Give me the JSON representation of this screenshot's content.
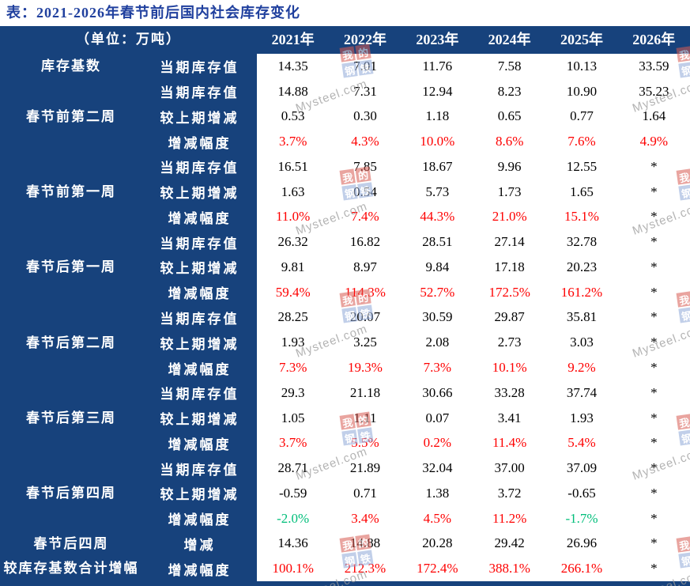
{
  "chart_data": {
    "type": "table",
    "title": "表：2021-2026年春节前后国内社会库存变化",
    "unit": "（单位：万吨）",
    "columns": [
      "2021年",
      "2022年",
      "2023年",
      "2024年",
      "2025年",
      "2026年"
    ],
    "groups": [
      {
        "label": "库存基数",
        "rows": [
          {
            "label": "当期库存值",
            "type": "value",
            "cells": [
              "14.35",
              "7.01",
              "11.76",
              "7.58",
              "10.13",
              "33.59"
            ]
          }
        ]
      },
      {
        "label": "春节前第二周",
        "rows": [
          {
            "label": "当期库存值",
            "type": "value",
            "cells": [
              "14.88",
              "7.31",
              "12.94",
              "8.23",
              "10.90",
              "35.23"
            ]
          },
          {
            "label": "较上期增减",
            "type": "value",
            "cells": [
              "0.53",
              "0.30",
              "1.18",
              "0.65",
              "0.77",
              "1.64"
            ]
          },
          {
            "label": "增减幅度",
            "type": "pct",
            "cells": [
              "3.7%",
              "4.3%",
              "10.0%",
              "8.6%",
              "7.6%",
              "4.9%"
            ]
          }
        ]
      },
      {
        "label": "春节前第一周",
        "rows": [
          {
            "label": "当期库存值",
            "type": "value",
            "cells": [
              "16.51",
              "7.85",
              "18.67",
              "9.96",
              "12.55",
              "*"
            ]
          },
          {
            "label": "较上期增减",
            "type": "value",
            "cells": [
              "1.63",
              "0.54",
              "5.73",
              "1.73",
              "1.65",
              "*"
            ]
          },
          {
            "label": "增减幅度",
            "type": "pct",
            "cells": [
              "11.0%",
              "7.4%",
              "44.3%",
              "21.0%",
              "15.1%",
              "*"
            ]
          }
        ]
      },
      {
        "label": "春节后第一周",
        "rows": [
          {
            "label": "当期库存值",
            "type": "value",
            "cells": [
              "26.32",
              "16.82",
              "28.51",
              "27.14",
              "32.78",
              "*"
            ]
          },
          {
            "label": "较上期增减",
            "type": "value",
            "cells": [
              "9.81",
              "8.97",
              "9.84",
              "17.18",
              "20.23",
              "*"
            ]
          },
          {
            "label": "增减幅度",
            "type": "pct",
            "cells": [
              "59.4%",
              "114.3%",
              "52.7%",
              "172.5%",
              "161.2%",
              "*"
            ]
          }
        ]
      },
      {
        "label": "春节后第二周",
        "rows": [
          {
            "label": "当期库存值",
            "type": "value",
            "cells": [
              "28.25",
              "20.07",
              "30.59",
              "29.87",
              "35.81",
              "*"
            ]
          },
          {
            "label": "较上期增减",
            "type": "value",
            "cells": [
              "1.93",
              "3.25",
              "2.08",
              "2.73",
              "3.03",
              "*"
            ]
          },
          {
            "label": "增减幅度",
            "type": "pct",
            "cells": [
              "7.3%",
              "19.3%",
              "7.3%",
              "10.1%",
              "9.2%",
              "*"
            ]
          }
        ]
      },
      {
        "label": "春节后第三周",
        "rows": [
          {
            "label": "当期库存值",
            "type": "value",
            "cells": [
              "29.3",
              "21.18",
              "30.66",
              "33.28",
              "37.74",
              "*"
            ]
          },
          {
            "label": "较上期增减",
            "type": "value",
            "cells": [
              "1.05",
              "1.11",
              "0.07",
              "3.41",
              "1.93",
              "*"
            ]
          },
          {
            "label": "增减幅度",
            "type": "pct",
            "cells": [
              "3.7%",
              "5.5%",
              "0.2%",
              "11.4%",
              "5.4%",
              "*"
            ]
          }
        ]
      },
      {
        "label": "春节后第四周",
        "rows": [
          {
            "label": "当期库存值",
            "type": "value",
            "cells": [
              "28.71",
              "21.89",
              "32.04",
              "37.00",
              "37.09",
              "*"
            ]
          },
          {
            "label": "较上期增减",
            "type": "value",
            "cells": [
              "-0.59",
              "0.71",
              "1.38",
              "3.72",
              "-0.65",
              "*"
            ]
          },
          {
            "label": "增减幅度",
            "type": "pct",
            "cells": [
              "-2.0%",
              "3.4%",
              "4.5%",
              "11.2%",
              "-1.7%",
              "*"
            ]
          }
        ]
      },
      {
        "label": "春节后四周\n较库存基数合计增幅",
        "rows": [
          {
            "label": "增减",
            "type": "value",
            "cells": [
              "14.36",
              "14.88",
              "20.28",
              "29.42",
              "26.96",
              "*"
            ]
          },
          {
            "label": "增减幅度",
            "type": "pct",
            "cells": [
              "100.1%",
              "212.3%",
              "172.4%",
              "388.1%",
              "266.1%",
              "*"
            ]
          }
        ]
      }
    ]
  },
  "colors": {
    "table_background": "#17427c",
    "title_text": "#20409e",
    "positive_pct": "#fe0000",
    "negative_pct": "#00be7a",
    "data_panel": "#ffffff",
    "watermark_red": "#d85b52",
    "watermark_blue": "#8fa8d8"
  },
  "watermark": {
    "text": "Mysteel.com",
    "logo_chars": [
      "我",
      "的",
      "钢",
      "铁"
    ]
  }
}
